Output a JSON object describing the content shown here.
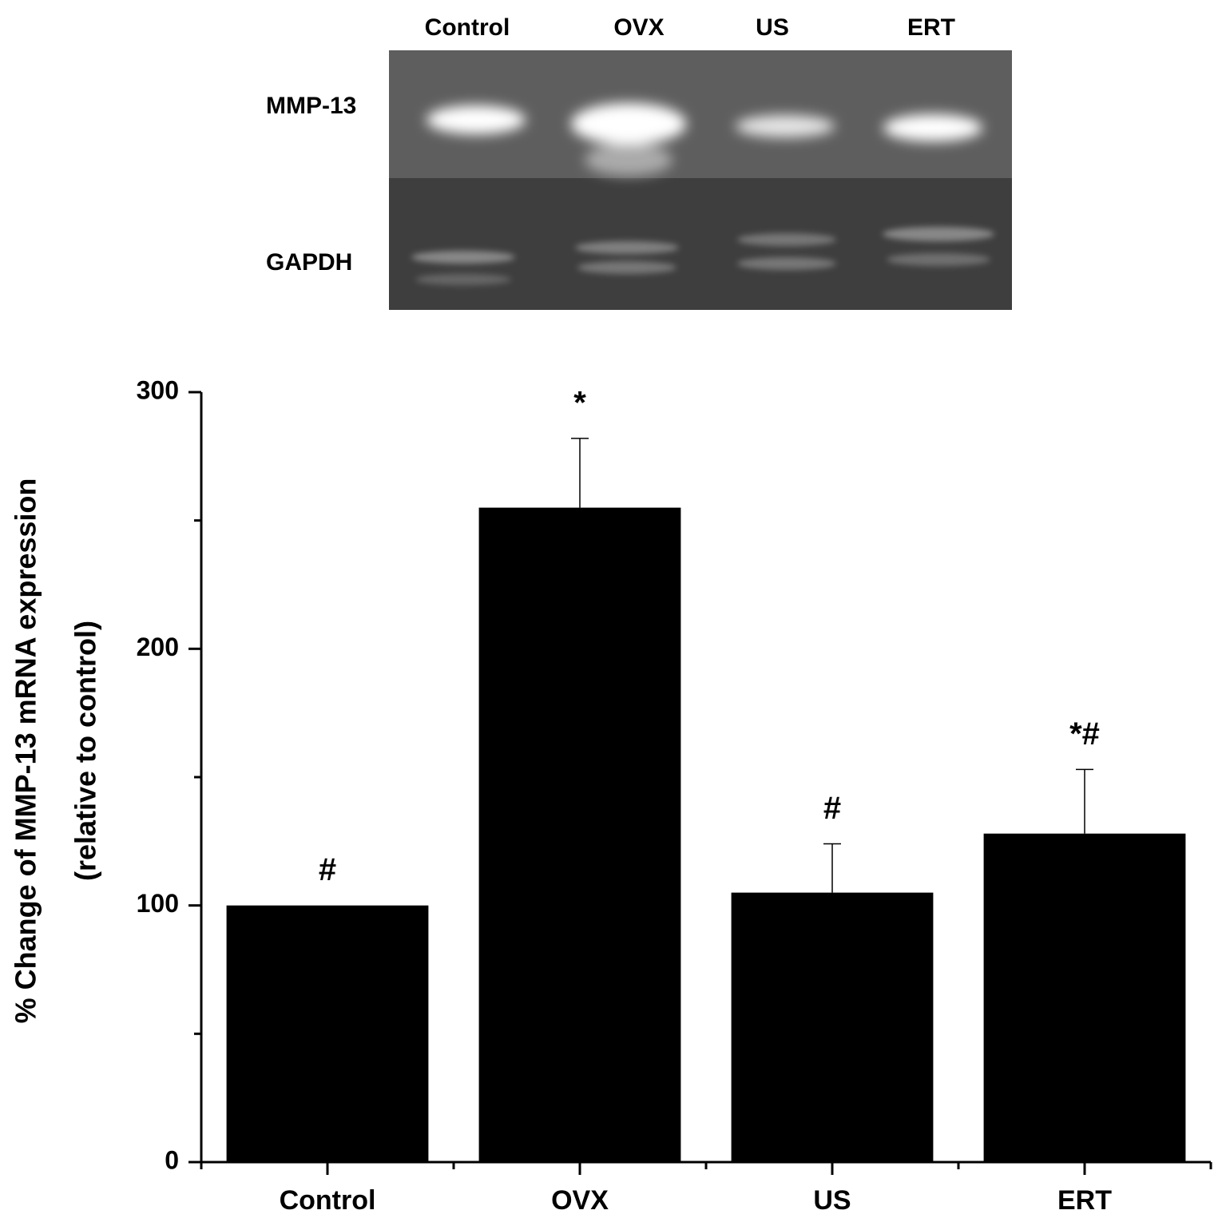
{
  "gel": {
    "lanes": [
      "Control",
      "OVX",
      "US",
      "ERT"
    ],
    "rows": [
      "MMP-13",
      "GAPDH"
    ]
  },
  "chart_data": {
    "type": "bar",
    "ylabel": [
      "% Change of MMP-13 mRNA expression",
      "(relative to control)"
    ],
    "categories": [
      "Control",
      "OVX",
      "US",
      "ERT"
    ],
    "values": [
      100,
      255,
      105,
      128
    ],
    "errors": [
      null,
      27,
      19,
      25
    ],
    "annotations": [
      "#",
      "*",
      "#",
      "*#"
    ],
    "color": "#000000",
    "ylim": [
      0,
      300
    ],
    "yticks": [
      0,
      100,
      200,
      300
    ],
    "minor_yticks": [
      50,
      150,
      250
    ],
    "grid": false
  }
}
